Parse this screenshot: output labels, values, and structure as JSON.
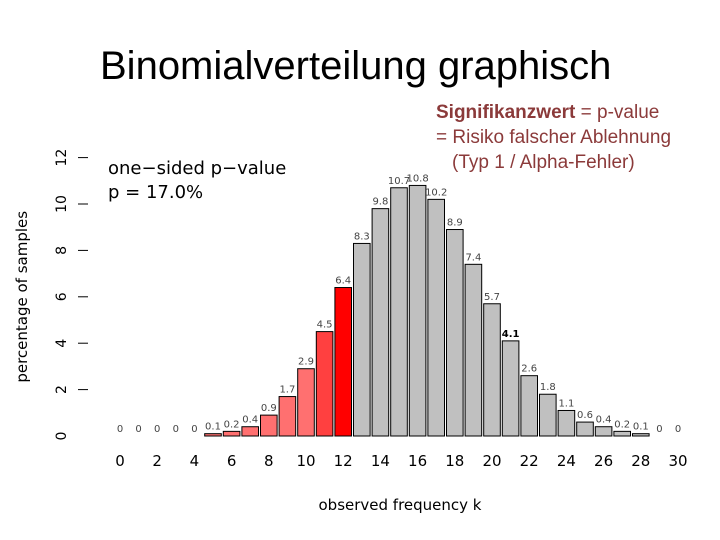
{
  "slide": {
    "title": "Binomialverteilung graphisch",
    "note": {
      "term": "Signifikanzwert",
      "line1_rest": " = p-value",
      "line2": "= Risiko falscher Ablehnung",
      "line3": "(Typ 1 / Alpha-Fehler)"
    }
  },
  "chart_data": {
    "type": "bar",
    "title": "",
    "xlabel": "observed frequency k",
    "ylabel": "percentage of samples",
    "annotation": [
      "one−sided p−value",
      "p = 17.0%"
    ],
    "x": [
      0,
      1,
      2,
      3,
      4,
      5,
      6,
      7,
      8,
      9,
      10,
      11,
      12,
      13,
      14,
      15,
      16,
      17,
      18,
      19,
      20,
      21,
      22,
      23,
      24,
      25,
      26,
      27,
      28,
      29,
      30
    ],
    "values": [
      0,
      0,
      0,
      0,
      0,
      0.1,
      0.2,
      0.4,
      0.9,
      1.7,
      2.9,
      4.5,
      6.4,
      8.3,
      9.8,
      10.7,
      10.8,
      10.2,
      8.9,
      7.4,
      5.7,
      4.1,
      2.6,
      1.8,
      1.1,
      0.6,
      0.4,
      0.2,
      0.1,
      0,
      0
    ],
    "value_labels": [
      "0",
      "0",
      "0",
      "0",
      "0",
      "0.1",
      "0.2",
      "0.4",
      "0.9",
      "1.7",
      "2.9",
      "4.5",
      "6.4",
      "8.3",
      "9.8",
      "10.7",
      "10.8",
      "10.2",
      "8.9",
      "7.4",
      "5.7",
      "4.1",
      "2.6",
      "1.8",
      "1.1",
      "0.6",
      "0.4",
      "0.2",
      "0.1",
      "0",
      "0"
    ],
    "highlight": {
      "k_min": 5,
      "k_max": 12
    },
    "xticks": [
      0,
      2,
      4,
      6,
      8,
      10,
      12,
      14,
      16,
      18,
      20,
      22,
      24,
      26,
      28,
      30
    ],
    "yticks": [
      0,
      2,
      4,
      6,
      8,
      10,
      12
    ],
    "ylim": [
      0,
      12
    ],
    "grid": false,
    "colors": {
      "neutral_bar": "#c0c0c0",
      "tail_light": "#ff7070",
      "tail_mid": "#ff4040",
      "tail_dark": "#ff0000",
      "bar_edge": "#000000",
      "note_text": "#8b3a3a"
    }
  }
}
